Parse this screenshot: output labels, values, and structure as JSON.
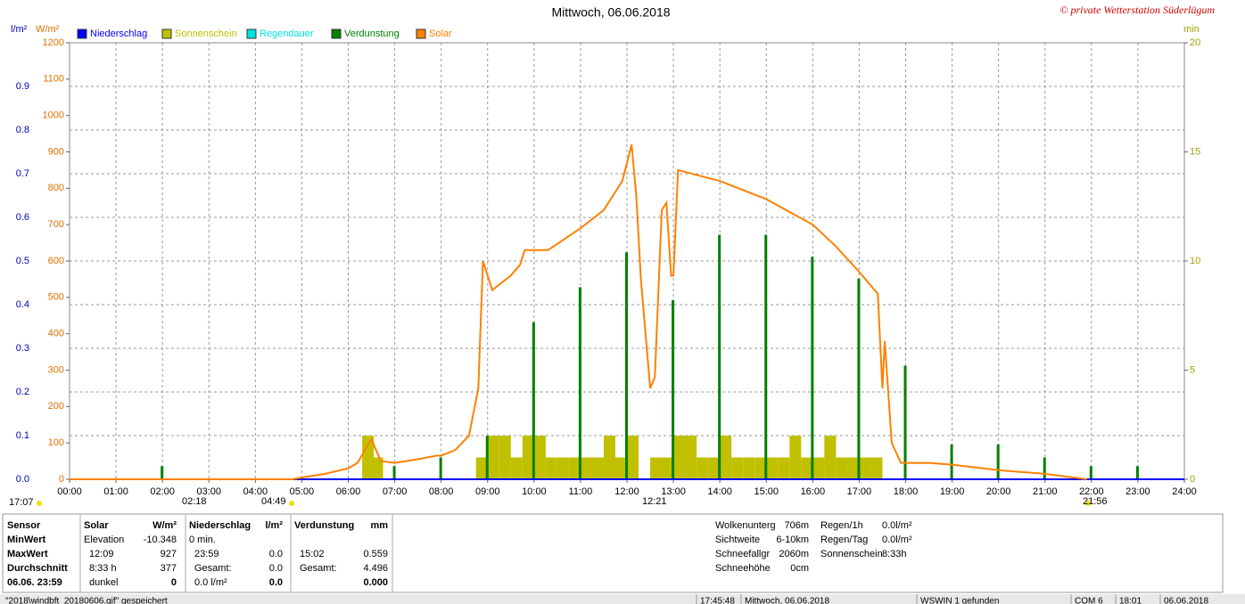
{
  "chart_data": {
    "type": "line",
    "title": "Mittwoch, 06.06.2018",
    "copyright": "© private Wetterstation Süderlügum",
    "ylabel": "l/m²",
    "y2label": "W/m²",
    "y3label": "min",
    "xlim": [
      0,
      24
    ],
    "xticks": [
      {
        "value": 0,
        "label": "00:00"
      },
      {
        "value": 1,
        "label": "01:00"
      },
      {
        "value": 2,
        "label": "02:00"
      },
      {
        "value": 3,
        "label": "03:00"
      },
      {
        "value": 4,
        "label": "04:00"
      },
      {
        "value": 5,
        "label": "05:00"
      },
      {
        "value": 6,
        "label": "06:00"
      },
      {
        "value": 7,
        "label": "07:00"
      },
      {
        "value": 8,
        "label": "08:00"
      },
      {
        "value": 9,
        "label": "09:00"
      },
      {
        "value": 10,
        "label": "10:00"
      },
      {
        "value": 11,
        "label": "11:00"
      },
      {
        "value": 12,
        "label": "12:00"
      },
      {
        "value": 13,
        "label": "13:00"
      },
      {
        "value": 14,
        "label": "14:00"
      },
      {
        "value": 15,
        "label": "15:00"
      },
      {
        "value": 16,
        "label": "16:00"
      },
      {
        "value": 17,
        "label": "17:00"
      },
      {
        "value": 18,
        "label": "18:00"
      },
      {
        "value": 19,
        "label": "19:00"
      },
      {
        "value": 20,
        "label": "20:00"
      },
      {
        "value": 21,
        "label": "21:00"
      },
      {
        "value": 22,
        "label": "22:00"
      },
      {
        "value": 23,
        "label": "23:00"
      },
      {
        "value": 24,
        "label": "24:00"
      }
    ],
    "ylim": [
      0,
      1
    ],
    "yticks": [
      {
        "value": 0,
        "label": "0.0"
      },
      0.1,
      0.2,
      0.3,
      0.4,
      0.5,
      0.6,
      0.7,
      0.8,
      0.9
    ],
    "y2lim": [
      0,
      1200
    ],
    "y2ticks": [
      0,
      100,
      200,
      300,
      400,
      500,
      600,
      700,
      800,
      900,
      1000,
      1100,
      1200
    ],
    "y3lim": [
      0,
      20
    ],
    "y3ticks": [
      0,
      5,
      10,
      15,
      20
    ],
    "grid": true,
    "annotations": [
      "17:07",
      "02:18",
      "04:49",
      "12:21",
      "21:56"
    ],
    "series": [
      {
        "name": "Niederschlag",
        "color": "#0000ff",
        "type": "line",
        "axis": "y",
        "x": [
          0,
          24
        ],
        "values": [
          0,
          0
        ]
      },
      {
        "name": "Sonnenschein",
        "color": "#c0c000",
        "type": "bar",
        "axis": "y3",
        "x": [
          6.3,
          6.5,
          8.75,
          9.0,
          9.25,
          9.5,
          9.75,
          10.0,
          10.25,
          10.5,
          10.75,
          11.0,
          11.25,
          11.5,
          11.75,
          12.0,
          12.5,
          12.75,
          13.0,
          13.25,
          13.5,
          13.75,
          14.0,
          14.25,
          14.5,
          14.75,
          15.0,
          15.25,
          15.5,
          15.75,
          16.0,
          16.25,
          16.5,
          16.75,
          17.0,
          17.25
        ],
        "values": [
          2,
          1,
          1,
          2,
          2,
          1,
          2,
          2,
          1,
          1,
          1,
          1,
          1,
          2,
          1,
          2,
          1,
          1,
          2,
          2,
          1,
          1,
          2,
          1,
          1,
          1,
          1,
          1,
          2,
          1,
          1,
          2,
          1,
          1,
          1,
          1
        ]
      },
      {
        "name": "Regendauer",
        "color": "#00e0e0",
        "type": "bar",
        "axis": "y3",
        "x": [],
        "values": []
      },
      {
        "name": "Verdunstung",
        "color": "#008000",
        "type": "spike",
        "axis": "y",
        "x": [
          2,
          7,
          8,
          9,
          10,
          11,
          12,
          13,
          14,
          15,
          16,
          17,
          18,
          19,
          20,
          21,
          22,
          23
        ],
        "values": [
          0.03,
          0.03,
          0.05,
          0.1,
          0.36,
          0.44,
          0.52,
          0.41,
          0.56,
          0.56,
          0.51,
          0.46,
          0.26,
          0.08,
          0.08,
          0.05,
          0.03,
          0.03
        ]
      },
      {
        "name": "Solar",
        "color": "#ff8000",
        "type": "line",
        "axis": "y2",
        "x": [
          0,
          4.8,
          5.0,
          5.5,
          6.0,
          6.2,
          6.4,
          6.5,
          6.7,
          7.0,
          7.5,
          7.9,
          8.0,
          8.3,
          8.6,
          8.8,
          8.9,
          9.1,
          9.5,
          9.7,
          9.8,
          10.3,
          11.0,
          11.5,
          11.9,
          12.1,
          12.2,
          12.3,
          12.5,
          12.6,
          12.75,
          12.85,
          12.95,
          13.0,
          13.1,
          14.0,
          15.0,
          16.0,
          16.5,
          17.0,
          17.4,
          17.5,
          17.55,
          17.7,
          17.9,
          18.5,
          19.0,
          20.0,
          21.0,
          21.9
        ],
        "values": [
          0,
          0,
          5,
          15,
          30,
          45,
          90,
          110,
          50,
          45,
          55,
          65,
          65,
          80,
          120,
          250,
          600,
          520,
          560,
          590,
          630,
          630,
          690,
          740,
          820,
          920,
          780,
          550,
          250,
          280,
          740,
          760,
          560,
          560,
          850,
          820,
          770,
          700,
          640,
          570,
          510,
          250,
          380,
          100,
          45,
          45,
          40,
          25,
          15,
          0
        ]
      }
    ]
  },
  "stats": {
    "header": [
      [
        "Sensor"
      ],
      [
        "Solar",
        "W/m²"
      ],
      [
        "Niederschlag",
        "l/m²"
      ],
      [
        "Verdunstung",
        "mm"
      ]
    ],
    "rows": [
      [
        "MinWert",
        "Elevation",
        "-10.348",
        "0 min.",
        null,
        null,
        null
      ],
      [
        "MaxWert",
        "12:09",
        "927",
        "23:59",
        "0.0",
        "15:02",
        "0.559"
      ],
      [
        "Durchschnitt",
        "8:33 h",
        "377",
        "Gesamt:",
        "0.0",
        "Gesamt:",
        "4.496"
      ],
      [
        "06.06. 23:59",
        "dunkel",
        "0",
        "0.0 l/m²",
        "0.0",
        null,
        "0.000"
      ]
    ]
  },
  "info": {
    "left": [
      [
        "Wolkenunterg",
        "706m"
      ],
      [
        "Sichtweite",
        "6-10km"
      ],
      [
        "Schneefallgr",
        "2060m"
      ],
      [
        "Schneehöhe",
        "0cm"
      ]
    ],
    "right": [
      [
        "Regen/1h",
        "0.0l/m²"
      ],
      [
        "Regen/Tag",
        "0.0l/m²"
      ],
      [
        "Sonnenschein",
        "8:33h"
      ]
    ]
  },
  "status": [
    "\"2018\\windbft_20180606.gif\" gespeichert",
    "17:45:48",
    "Mittwoch, 06.06.2018",
    "WSWIN 1 gefunden",
    "COM 6",
    "18:01",
    "06.06.2018"
  ]
}
